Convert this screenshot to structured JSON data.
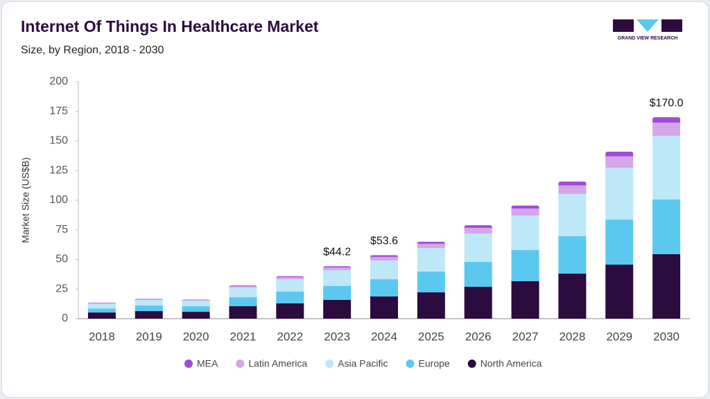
{
  "chart_data": {
    "type": "stacked_bar",
    "title": "Internet Of Things In Healthcare Market",
    "subtitle": "Size, by Region, 2018 - 2030",
    "brand": "GRAND VIEW RESEARCH",
    "y_label": "Market Size (US$B)",
    "categories": [
      "2018",
      "2019",
      "2020",
      "2021",
      "2022",
      "2023",
      "2024",
      "2025",
      "2026",
      "2027",
      "2028",
      "2029",
      "2030"
    ],
    "series": [
      {
        "name": "North America",
        "color": "#2c0b3e",
        "values": [
          5.2,
          6.4,
          5.8,
          10.5,
          12.9,
          15.8,
          18.7,
          22.2,
          26.9,
          31.6,
          38.0,
          45.6,
          54.4
        ]
      },
      {
        "name": "Europe",
        "color": "#5bc8f0",
        "values": [
          3.4,
          4.7,
          4.7,
          7.6,
          9.9,
          11.7,
          14.6,
          17.6,
          21.0,
          26.3,
          31.6,
          38.0,
          46.2
        ]
      },
      {
        "name": "Asia Pacific",
        "color": "#bde8f7",
        "values": [
          4.0,
          4.7,
          4.7,
          8.2,
          10.5,
          13.4,
          15.8,
          19.8,
          24.0,
          29.2,
          35.7,
          43.9,
          53.8
        ]
      },
      {
        "name": "Latin America",
        "color": "#d5a6e8",
        "values": [
          0.6,
          0.7,
          0.6,
          1.2,
          1.7,
          2.3,
          3.0,
          3.6,
          4.8,
          5.8,
          7.2,
          9.5,
          11.0
        ]
      },
      {
        "name": "MEA",
        "color": "#a04bd6",
        "values": [
          0.3,
          0.3,
          0.3,
          0.5,
          0.8,
          1.0,
          1.5,
          1.7,
          2.2,
          2.6,
          3.2,
          3.9,
          4.6
        ]
      }
    ],
    "annotations": [
      {
        "category": "2023",
        "value": 44.2,
        "label": "$44.2"
      },
      {
        "category": "2024",
        "value": 53.6,
        "label": "$53.6"
      },
      {
        "category": "2030",
        "value": 170.0,
        "label": "$170.0"
      }
    ],
    "ylim": [
      0,
      200
    ],
    "yticks": [
      0,
      25,
      50,
      75,
      100,
      125,
      150,
      175,
      200
    ]
  }
}
